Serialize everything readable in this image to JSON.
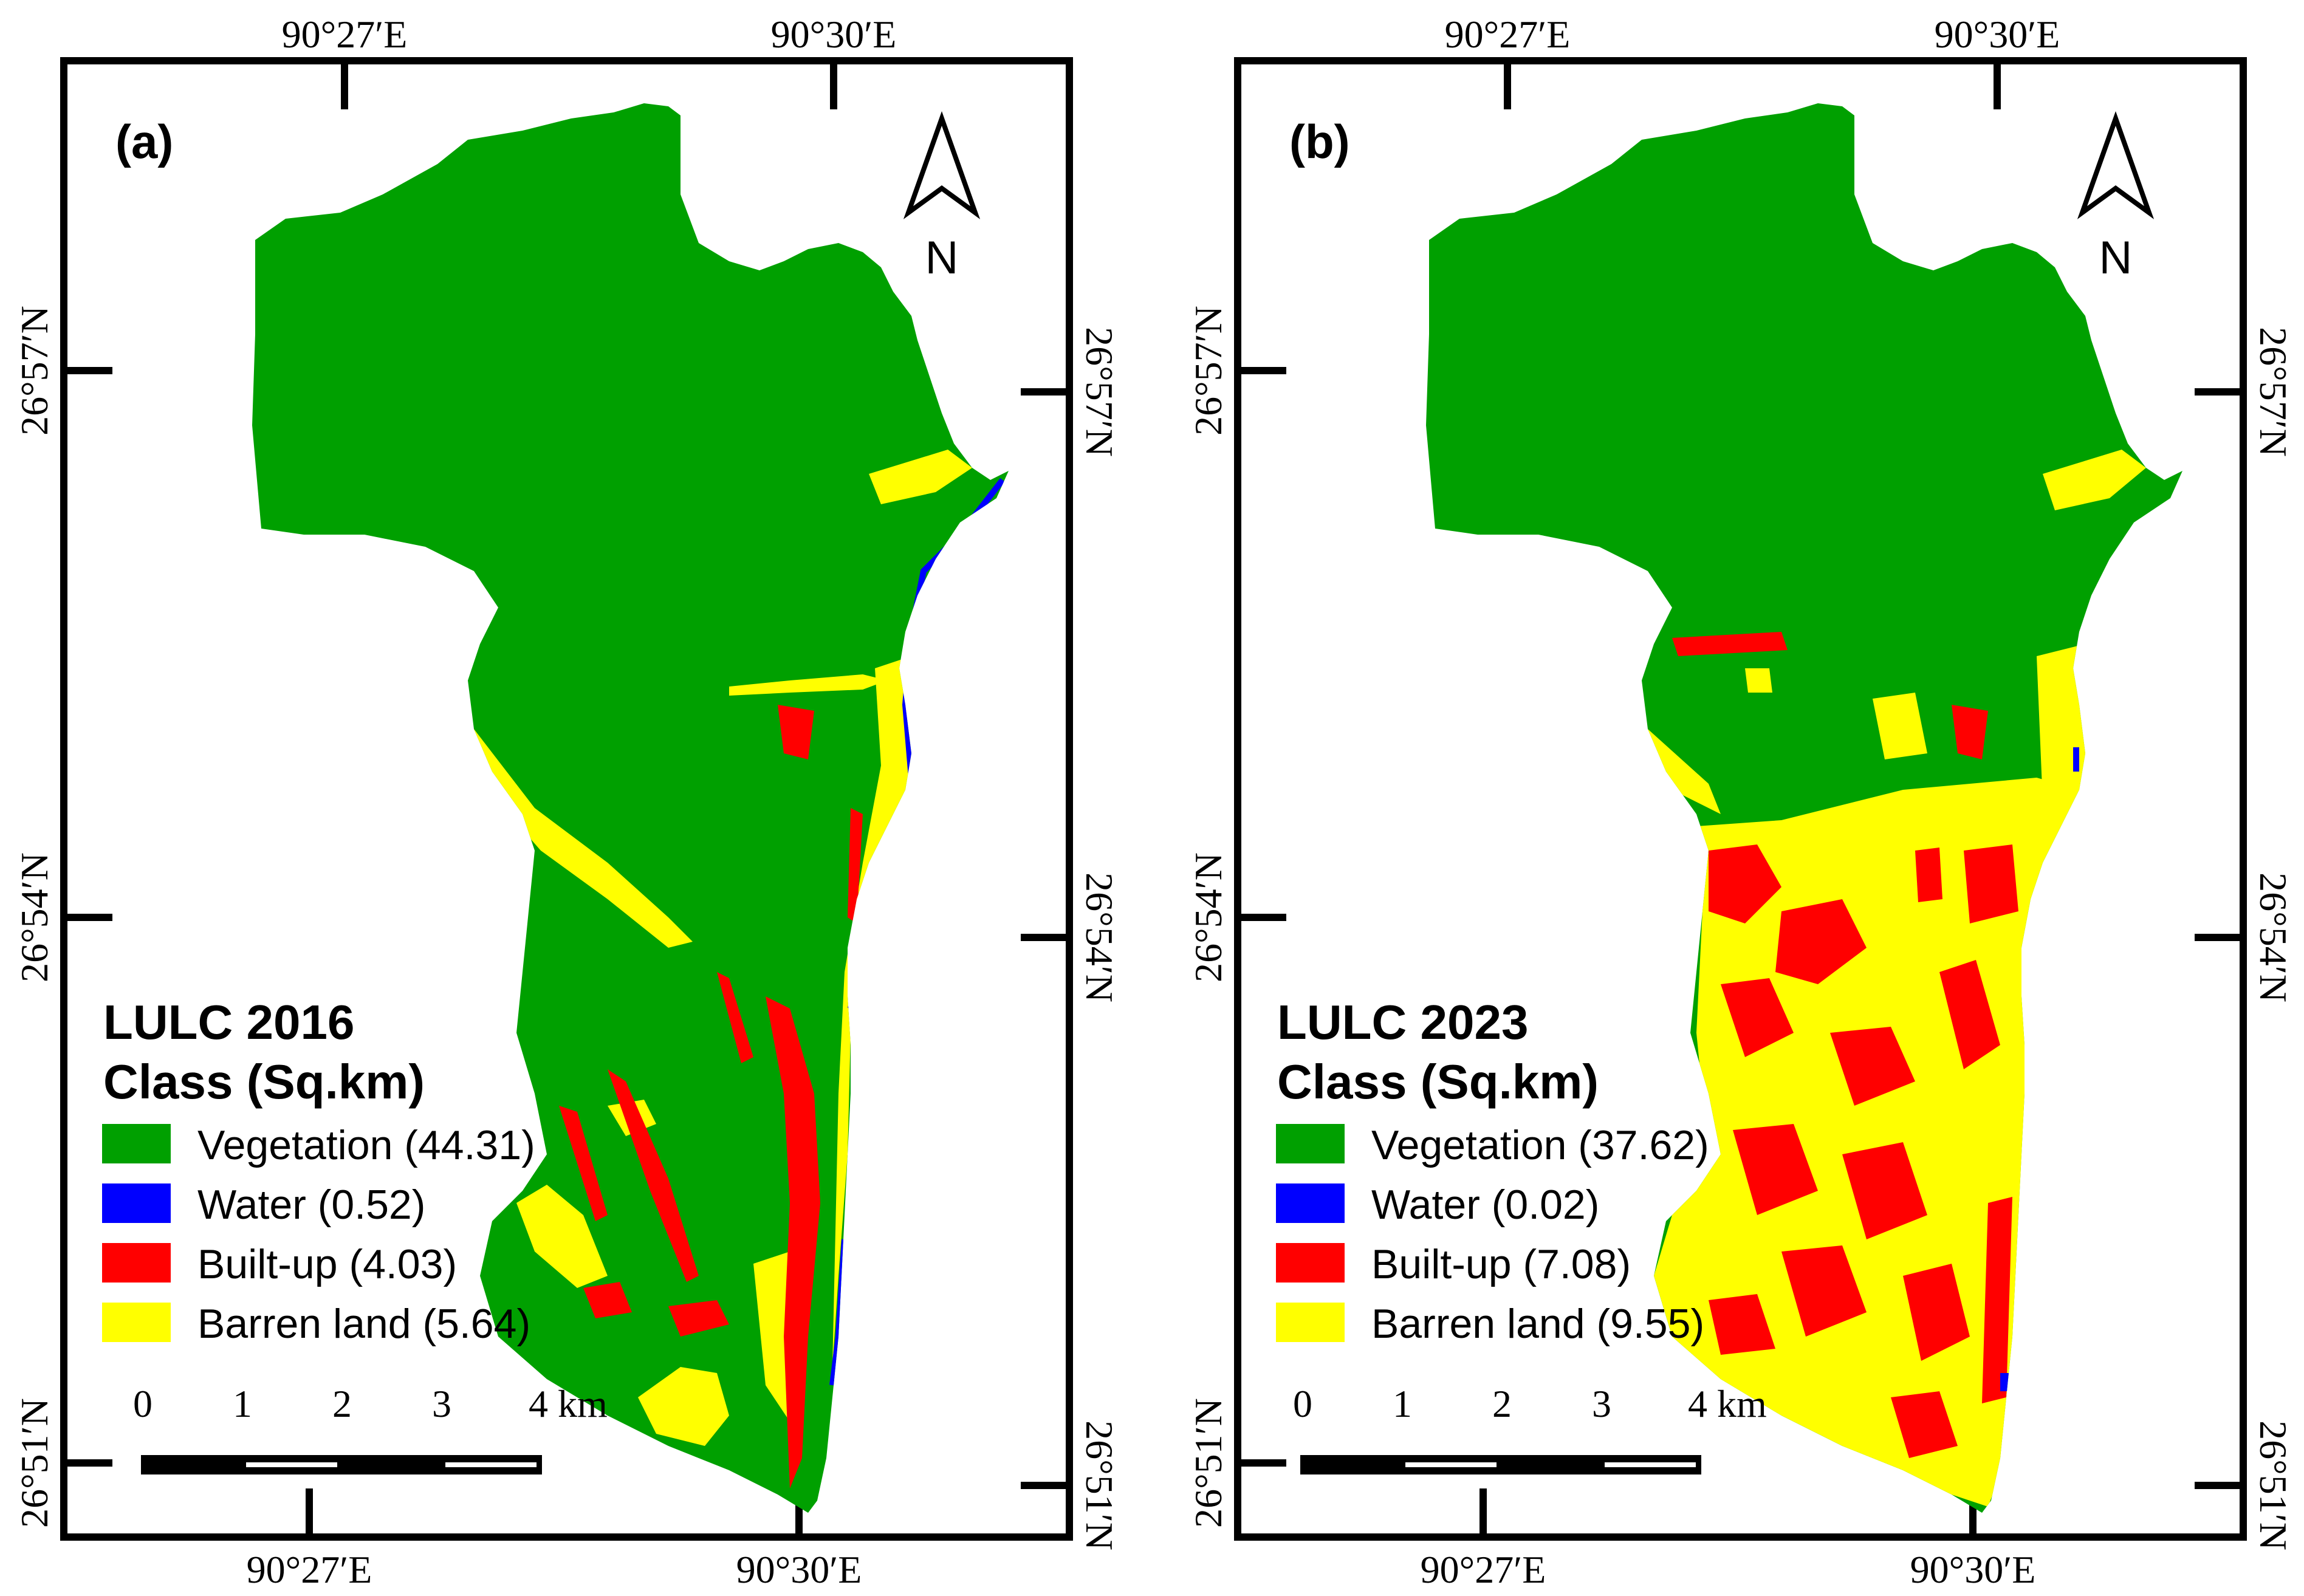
{
  "panels": [
    {
      "id": "a",
      "label": "(a)",
      "north": "N",
      "top_ticks": [
        "90°27′E",
        "90°30′E"
      ],
      "bottom_ticks": [
        "90°27′E",
        "90°30′E"
      ],
      "left_ticks": [
        "26°57′N",
        "26°54′N",
        "26°51′N"
      ],
      "right_ticks": [
        "26°57′N",
        "26°54′N",
        "26°51′N"
      ],
      "legend": {
        "title_line1": "LULC 2016",
        "title_line2": "Class (Sq.km)",
        "items": [
          {
            "label": "Vegetation (44.31)",
            "color": "#00A000"
          },
          {
            "label": "Water (0.52)",
            "color": "#0000FF"
          },
          {
            "label": "Built-up (4.03)",
            "color": "#FF0000"
          },
          {
            "label": "Barren land (5.64)",
            "color": "#FFFF00"
          }
        ]
      },
      "scale_bar": {
        "labels": [
          "0",
          "1",
          "2",
          "3",
          "4 km"
        ]
      }
    },
    {
      "id": "b",
      "label": "(b)",
      "north": "N",
      "top_ticks": [
        "90°27′E",
        "90°30′E"
      ],
      "bottom_ticks": [
        "90°27′E",
        "90°30′E"
      ],
      "left_ticks": [
        "26°57′N",
        "26°54′N",
        "26°51′N"
      ],
      "right_ticks": [
        "26°57′N",
        "26°54′N",
        "26°51′N"
      ],
      "legend": {
        "title_line1": "LULC 2023",
        "title_line2": "Class (Sq.km)",
        "items": [
          {
            "label": "Vegetation (37.62)",
            "color": "#00A000"
          },
          {
            "label": "Water (0.02)",
            "color": "#0000FF"
          },
          {
            "label": "Built-up (7.08)",
            "color": "#FF0000"
          },
          {
            "label": "Barren land (9.55)",
            "color": "#FFFF00"
          }
        ]
      },
      "scale_bar": {
        "labels": [
          "0",
          "1",
          "2",
          "3",
          "4 km"
        ]
      }
    }
  ],
  "colors": {
    "vegetation": "#00A000",
    "water": "#0000FF",
    "builtup": "#FF0000",
    "barren": "#FFFF00",
    "frame": "#000000"
  }
}
